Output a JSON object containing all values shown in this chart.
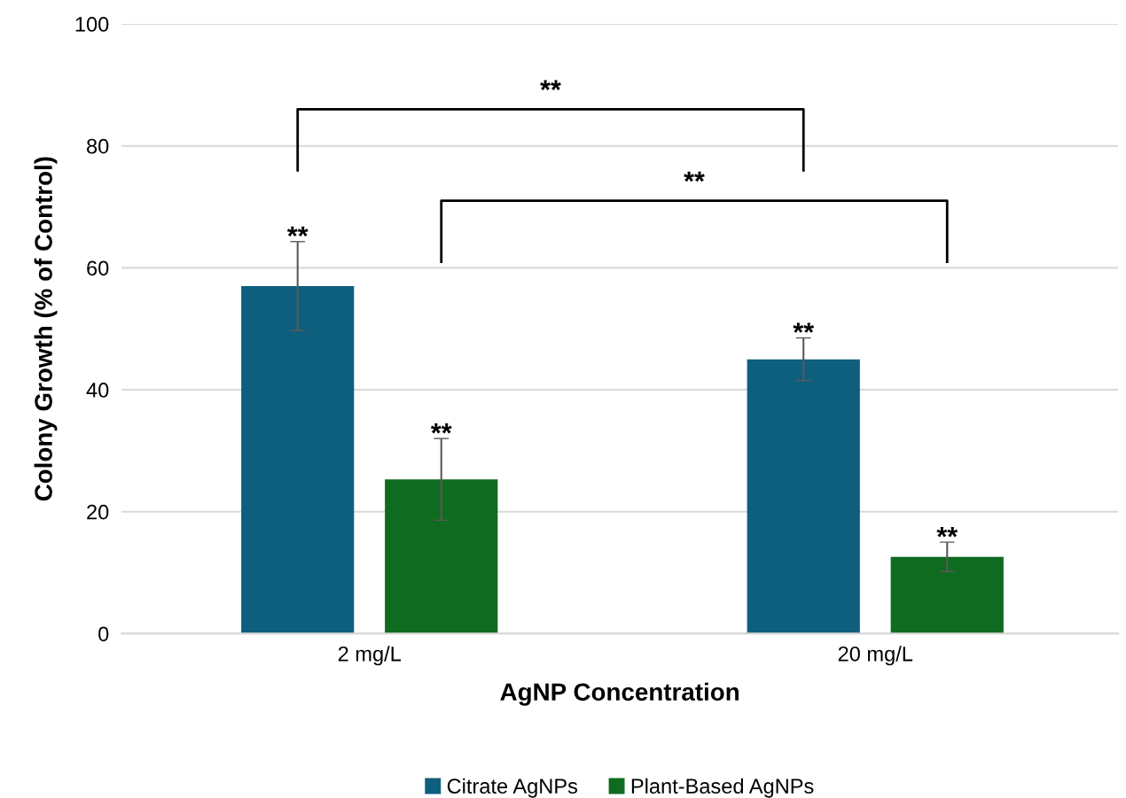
{
  "chart_data": {
    "type": "bar",
    "xlabel": "AgNP Concentration",
    "ylabel": "Colony Growth (% of Control)",
    "categories": [
      "2 mg/L",
      "20 mg/L"
    ],
    "series": [
      {
        "name": "Citrate AgNPs",
        "color": "#0e5f7e",
        "values": [
          57,
          45
        ],
        "errors": [
          7.3,
          3.5
        ]
      },
      {
        "name": "Plant-Based AgNPs",
        "color": "#0f6b1f",
        "values": [
          25.3,
          12.6
        ],
        "errors": [
          6.7,
          2.4
        ]
      }
    ],
    "ylim": [
      0,
      100
    ],
    "yticks": [
      0,
      20,
      40,
      60,
      80,
      100
    ],
    "grid": "y",
    "legend": "bottom",
    "annotations": [
      "**",
      "**",
      "**",
      "**",
      "**",
      "**"
    ]
  }
}
